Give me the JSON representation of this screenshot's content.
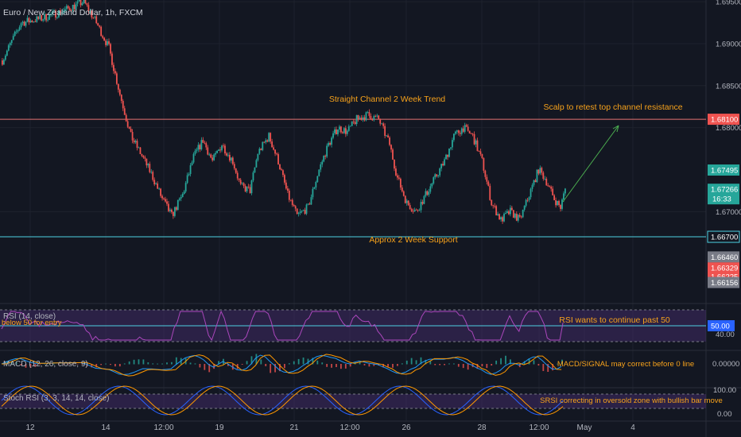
{
  "symbol": "Euro / New Zealand Dollar, 1h, FXCM",
  "colors": {
    "background": "#131722",
    "grid": "#1e222d",
    "up": "#26a69a",
    "down": "#ef5350",
    "annotation": "#f7a21b",
    "resistance": "#e57373",
    "support": "#4dd0e1",
    "rsi": "#ab47bc",
    "rsi_band": "#4a2f73",
    "macd": "#2196f3",
    "signal": "#ff9800",
    "stoch_k": "#2962ff",
    "stoch_d": "#ff9800",
    "trend_arrow": "#4caf50"
  },
  "chart_data": {
    "type": "candlestick",
    "title": "Euro / New Zealand Dollar, 1h, FXCM",
    "ylim": [
      1.66,
      1.6952
    ],
    "price_ticks": [
      "1.69500",
      "1.69000",
      "1.68500",
      "1.68000",
      "1.67000"
    ],
    "x_ticks": [
      "12",
      "14",
      "12:00",
      "19",
      "21",
      "12:00",
      "26",
      "28",
      "12:00",
      "May",
      "4"
    ],
    "levels": [
      {
        "name": "resistance",
        "value": 1.681,
        "label": "1.68100"
      },
      {
        "name": "support",
        "value": 1.667,
        "label": "1.66700"
      }
    ],
    "price_labels": [
      {
        "label": "1.67495",
        "value": 1.67495,
        "color": "#26a69a"
      },
      {
        "label": "1.67266",
        "sub": "16:33",
        "value": 1.67266,
        "color": "#26a69a"
      },
      {
        "label": "1.66460",
        "value": 1.6646,
        "color": "#787b86"
      },
      {
        "label": "1.66329",
        "value": 1.66329,
        "color": "#ef5350"
      },
      {
        "label": "1.66225",
        "value": 1.66225,
        "color": "#ef5350"
      },
      {
        "label": "1.66156",
        "value": 1.66156,
        "color": "#787b86"
      }
    ],
    "close_anchors": [
      [
        0,
        1.688
      ],
      [
        12,
        1.6925
      ],
      [
        25,
        1.693
      ],
      [
        40,
        1.694
      ],
      [
        52,
        1.695
      ],
      [
        60,
        1.6925
      ],
      [
        68,
        1.6895
      ],
      [
        75,
        1.684
      ],
      [
        82,
        1.679
      ],
      [
        88,
        1.677
      ],
      [
        95,
        1.6745
      ],
      [
        102,
        1.6715
      ],
      [
        108,
        1.6695
      ],
      [
        115,
        1.672
      ],
      [
        122,
        1.6765
      ],
      [
        128,
        1.6785
      ],
      [
        134,
        1.676
      ],
      [
        140,
        1.678
      ],
      [
        147,
        1.676
      ],
      [
        152,
        1.673
      ],
      [
        158,
        1.6725
      ],
      [
        163,
        1.677
      ],
      [
        170,
        1.679
      ],
      [
        176,
        1.676
      ],
      [
        182,
        1.672
      ],
      [
        188,
        1.6695
      ],
      [
        195,
        1.6705
      ],
      [
        202,
        1.675
      ],
      [
        208,
        1.678
      ],
      [
        214,
        1.68
      ],
      [
        220,
        1.6795
      ],
      [
        226,
        1.681
      ],
      [
        233,
        1.6815
      ],
      [
        240,
        1.681
      ],
      [
        247,
        1.678
      ],
      [
        252,
        1.674
      ],
      [
        258,
        1.671
      ],
      [
        264,
        1.67
      ],
      [
        270,
        1.672
      ],
      [
        276,
        1.674
      ],
      [
        282,
        1.676
      ],
      [
        288,
        1.679
      ],
      [
        294,
        1.68
      ],
      [
        300,
        1.679
      ],
      [
        306,
        1.676
      ],
      [
        312,
        1.671
      ],
      [
        318,
        1.669
      ],
      [
        324,
        1.67
      ],
      [
        330,
        1.669
      ],
      [
        336,
        1.672
      ],
      [
        342,
        1.675
      ],
      [
        346,
        1.674
      ],
      [
        352,
        1.6715
      ],
      [
        356,
        1.6705
      ],
      [
        359,
        1.6727
      ]
    ],
    "resistance_note": "Straight Channel 2 Week Trend",
    "support_note": "Approx 2 Week Support",
    "scalp_note": "Scalp to retest top channel resistance",
    "indicators": {
      "rsi": {
        "label": "RSI (14, close)",
        "entry_note": "below 50 for entry",
        "note": "RSI wants to continue past 50",
        "level_label": "50.00",
        "lower_label": "40.00"
      },
      "macd": {
        "label": "MACD (12, 26, close, 9)",
        "note": "MACD/SIGNAL may correct before 0 line",
        "zero_label": "0.00000"
      },
      "stoch_rsi": {
        "label": "Stoch RSI (3, 3, 14, 14, close)",
        "note": "SRSI correcting in oversold zone with bullish bar move",
        "top_label": "100.00",
        "bottom_label": "0.00"
      }
    }
  }
}
